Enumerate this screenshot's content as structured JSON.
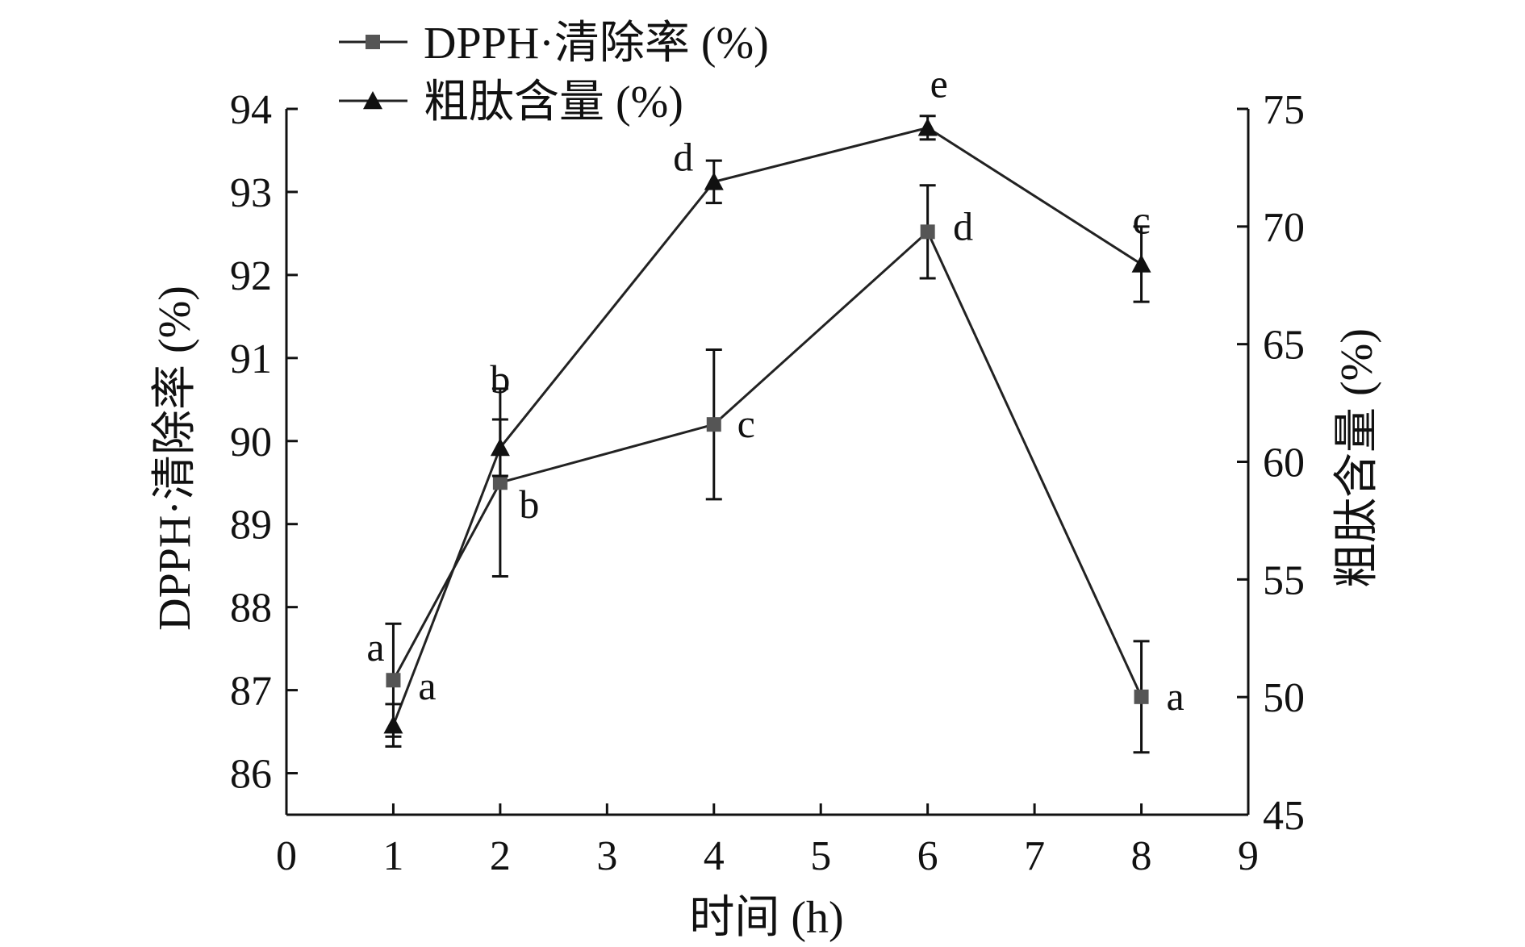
{
  "chart_data": {
    "type": "line",
    "xlabel": "时间 (h)",
    "ylabel_left": "DPPH·清除率 (%)",
    "ylabel_right": "粗肽含量 (%)",
    "xlim": [
      0,
      9
    ],
    "ylim_left": [
      85.5,
      94
    ],
    "ylim_right": [
      45,
      75
    ],
    "x_ticks": [
      0,
      1,
      2,
      3,
      4,
      5,
      6,
      7,
      8,
      9
    ],
    "y_left_ticks": [
      86,
      87,
      88,
      89,
      90,
      91,
      92,
      93,
      94
    ],
    "y_right_ticks": [
      45,
      50,
      55,
      60,
      65,
      70,
      75
    ],
    "grid": false,
    "legend_position": "top-left-outside",
    "series": [
      {
        "name": "DPPH·清除率 (%)",
        "axis": "left",
        "marker": "square",
        "color": "#555555",
        "x": [
          1,
          2,
          4,
          6,
          8
        ],
        "y": [
          87.12,
          89.5,
          90.2,
          92.52,
          86.92
        ],
        "error": [
          0.68,
          1.13,
          0.9,
          0.56,
          0.67
        ],
        "labels": [
          "a",
          "b",
          "c",
          "d",
          "a"
        ]
      },
      {
        "name": "粗肽含量 (%)",
        "axis": "right",
        "marker": "triangle",
        "color": "#111111",
        "x": [
          1,
          2,
          4,
          6,
          8
        ],
        "y": [
          48.8,
          60.6,
          71.9,
          74.2,
          68.4
        ],
        "error": [
          0.9,
          1.2,
          0.9,
          0.5,
          1.6
        ],
        "labels": [
          "a",
          "b",
          "d",
          "e",
          "c"
        ]
      }
    ]
  }
}
